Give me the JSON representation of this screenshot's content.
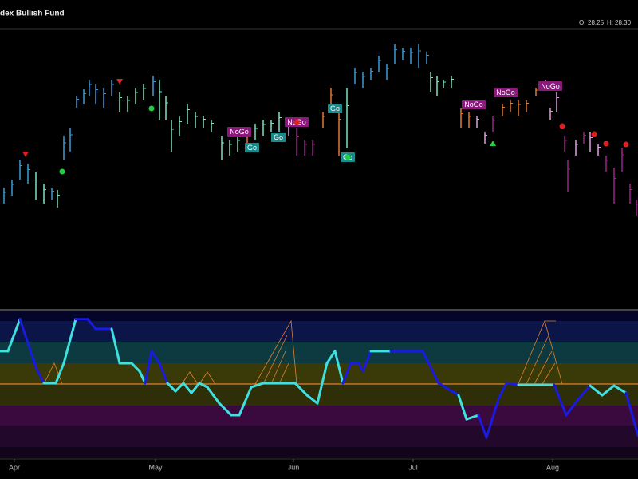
{
  "header": {
    "title": "dex Bullish Fund",
    "quote": {
      "open_label": "O:",
      "open": "28.25",
      "high_label": "H:",
      "high": "28.30"
    }
  },
  "chart_data": [
    {
      "type": "ohlc",
      "x": [
        0.5,
        1.5,
        2.5,
        3.5,
        4.5,
        5.5,
        6.5,
        7.2,
        8,
        8.8,
        9.6,
        10.5,
        11.2,
        12,
        13,
        14,
        15,
        16,
        17,
        18,
        19.2,
        20,
        20.8,
        21.5,
        22.5,
        23.5,
        24.5,
        25.5,
        26.5,
        27.8,
        28.8,
        29.8,
        31,
        32,
        33,
        34,
        35,
        36.2,
        37.2,
        38.2,
        39.2,
        40.5,
        41.5,
        42.5,
        43.5,
        44.5,
        45.5,
        46.5,
        47.5,
        48.5,
        49.5,
        50.5,
        51.5,
        52.5,
        53.5,
        54,
        54.8,
        55.6,
        56.6,
        57.8,
        58.8,
        59.8,
        60.8,
        61.8,
        63,
        64,
        65,
        66,
        67.2,
        68.4,
        69,
        69.8,
        70.8,
        71.2,
        72.2,
        73.2,
        74,
        75,
        76,
        77,
        78,
        79,
        79.8
      ],
      "high": [
        25.5,
        26.5,
        29,
        28.5,
        27.5,
        26,
        25.5,
        25.2,
        32,
        33,
        37,
        37.8,
        39,
        38.5,
        38,
        39,
        37.5,
        37,
        38,
        38.5,
        39.5,
        39,
        37,
        34,
        34.5,
        36,
        35,
        34.5,
        34,
        32,
        31.5,
        32,
        33,
        33.5,
        34,
        34,
        35,
        34,
        33,
        31.5,
        31.5,
        35,
        38,
        36,
        38,
        40.5,
        40,
        40.5,
        42,
        41,
        43.5,
        43,
        43,
        43.5,
        42.5,
        40,
        39.5,
        39,
        39.5,
        35.5,
        35,
        34.5,
        32.5,
        34.5,
        36,
        36.5,
        36.5,
        36.5,
        38,
        39,
        35.5,
        37.5,
        32,
        29,
        31.5,
        32.5,
        32.5,
        31,
        29.5,
        28,
        30.5,
        26,
        24
      ],
      "low": [
        23.5,
        24.5,
        26.5,
        26,
        24,
        23.5,
        24,
        23,
        29,
        30,
        35.5,
        36,
        37,
        36,
        35.5,
        37,
        35,
        35,
        36,
        36.5,
        37,
        34,
        34,
        30,
        32,
        33.5,
        33,
        33,
        32.5,
        29,
        29.5,
        30,
        31,
        31.5,
        32,
        32.5,
        32.5,
        32,
        29.5,
        29.5,
        29.5,
        33,
        35,
        29.5,
        30.5,
        38.5,
        38,
        39,
        40,
        39,
        41,
        41.5,
        41,
        40.5,
        41,
        37.5,
        37,
        38,
        38,
        33,
        33,
        33,
        31,
        32.5,
        34.5,
        35,
        34.5,
        35,
        37,
        38,
        34,
        35,
        30,
        25,
        29.5,
        31,
        30,
        29.5,
        27.5,
        23.5,
        27.5,
        23.5,
        22
      ],
      "colors": [
        "#3a9ad9",
        "#3a9ad9",
        "#3a9ad9",
        "#3a9ad9",
        "#7de3c0",
        "#7de3c0",
        "#3a9ad9",
        "#7de3c0",
        "#3a9ad9",
        "#3a9ad9",
        "#3a9ad9",
        "#3a9ad9",
        "#3a9ad9",
        "#3a9ad9",
        "#3a9ad9",
        "#3a9ad9",
        "#7de3c0",
        "#7de3c0",
        "#7de3c0",
        "#7de3c0",
        "#3a9ad9",
        "#7de3c0",
        "#7de3c0",
        "#7de3c0",
        "#7de3c0",
        "#7de3c0",
        "#7de3c0",
        "#7de3c0",
        "#7de3c0",
        "#7de3c0",
        "#7de3c0",
        "#7de3c0",
        "#e07a30",
        "#7de3c0",
        "#7de3c0",
        "#7de3c0",
        "#7de3c0",
        "#e0a0e0",
        "#a0208a",
        "#a0208a",
        "#a0208a",
        "#e07a30",
        "#e07a30",
        "#e07a30",
        "#7de3c0",
        "#3a9ad9",
        "#3a9ad9",
        "#3a9ad9",
        "#3a9ad9",
        "#3a9ad9",
        "#3a9ad9",
        "#3a9ad9",
        "#3a9ad9",
        "#3a9ad9",
        "#3a9ad9",
        "#7de3c0",
        "#7de3c0",
        "#7de3c0",
        "#7de3c0",
        "#e07a30",
        "#e07a30",
        "#e0a0e0",
        "#e0a0e0",
        "#a0208a",
        "#e07a30",
        "#e07a30",
        "#e07a30",
        "#e07a30",
        "#e07a30",
        "#e0a0e0",
        "#e0a0e0",
        "#e0a0e0",
        "#a0208a",
        "#a0208a",
        "#e0a0e0",
        "#a0208a",
        "#e0a0e0",
        "#e0a0e0",
        "#a0208a",
        "#a0208a",
        "#a0208a",
        "#a0208a",
        "#a0208a"
      ],
      "signals": [
        {
          "x": 3.2,
          "price": 29.7,
          "shape": "triangle-down",
          "color": "#e02020"
        },
        {
          "x": 15,
          "price": 38.8,
          "shape": "triangle-down",
          "color": "#e02020"
        },
        {
          "x": 7.8,
          "price": 27.5,
          "shape": "dot",
          "color": "#20d040"
        },
        {
          "x": 19,
          "price": 35.4,
          "shape": "dot",
          "color": "#20d040"
        },
        {
          "x": 37.2,
          "price": 33.7,
          "shape": "dot",
          "color": "#e02020"
        },
        {
          "x": 43.6,
          "price": 29.3,
          "shape": "dot",
          "color": "#20d040"
        },
        {
          "x": 61.8,
          "price": 31,
          "shape": "triangle-up",
          "color": "#20d040"
        },
        {
          "x": 70.5,
          "price": 33.2,
          "shape": "dot",
          "color": "#e02020"
        },
        {
          "x": 74.5,
          "price": 32.2,
          "shape": "dot",
          "color": "#e02020"
        },
        {
          "x": 76,
          "price": 31,
          "shape": "dot",
          "color": "#e02020"
        },
        {
          "x": 78.5,
          "price": 30.9,
          "shape": "dot",
          "color": "#e02020"
        }
      ],
      "annotations": [
        {
          "text": "NoGo",
          "x": 30,
          "price": 32.5,
          "color": "#8a1a7a"
        },
        {
          "text": "Go",
          "x": 31.6,
          "price": 30.5,
          "color": "#1a8a8a"
        },
        {
          "text": "Go",
          "x": 34.9,
          "price": 31.8,
          "color": "#1a8a8a"
        },
        {
          "text": "NoGo",
          "x": 37.2,
          "price": 33.7,
          "color": "#8a1a7a"
        },
        {
          "text": "Go",
          "x": 42,
          "price": 35.4,
          "color": "#1a8a8a"
        },
        {
          "text": "Go",
          "x": 43.6,
          "price": 29.3,
          "color": "#1a8a8a"
        },
        {
          "text": "NoGo",
          "x": 59.4,
          "price": 35.9,
          "color": "#8a1a7a"
        },
        {
          "text": "NoGo",
          "x": 63.4,
          "price": 37.4,
          "color": "#8a1a7a"
        },
        {
          "text": "NoGo",
          "x": 69,
          "price": 38.2,
          "color": "#8a1a7a"
        }
      ],
      "xlim": [
        0,
        80
      ],
      "ylim": [
        10,
        46
      ]
    },
    {
      "type": "oscillator",
      "x": [
        0,
        1,
        2.5,
        3.5,
        4.5,
        5.5,
        7,
        8,
        9.5,
        11,
        12,
        14,
        15,
        16.5,
        17.5,
        18.2,
        19,
        20,
        21,
        22,
        23,
        24,
        25,
        26,
        27.5,
        29,
        30,
        31.5,
        33,
        37,
        38.5,
        39.8,
        41,
        42,
        43,
        44,
        45,
        45.5,
        46.5,
        49,
        53,
        55,
        57.5,
        58.5,
        60,
        61,
        62.5,
        63.5,
        65,
        69.5,
        71,
        72.5,
        74,
        75.5,
        77,
        78.5,
        80
      ],
      "values": [
        1.55,
        1.55,
        3.06,
        1.92,
        0.79,
        0.04,
        0.04,
        0.98,
        3.06,
        3.06,
        2.6,
        2.6,
        0.98,
        0.98,
        0.6,
        0.04,
        1.55,
        0.98,
        0.04,
        -0.34,
        0.04,
        -0.42,
        0.04,
        -0.15,
        -0.91,
        -1.47,
        -1.47,
        -0.15,
        0.04,
        0.04,
        -0.53,
        -0.91,
        0.98,
        1.55,
        0.04,
        0.98,
        0.98,
        0.6,
        1.55,
        1.55,
        1.55,
        0.04,
        -0.53,
        -1.66,
        -1.47,
        -2.53,
        -0.72,
        0.04,
        -0.04,
        -0.04,
        -1.47,
        -0.72,
        -0.08,
        -0.53,
        -0.08,
        -0.42,
        -2.42
      ],
      "colors": [
        "#40e0e0",
        "#40e0e0",
        "#1a1ae0",
        "#1a1ae0",
        "#1a1ae0",
        "#40e0e0",
        "#40e0e0",
        "#40e0e0",
        "#1a1ae0",
        "#1a1ae0",
        "#1a1ae0",
        "#40e0e0",
        "#40e0e0",
        "#40e0e0",
        "#40e0e0",
        "#1a1ae0",
        "#1a1ae0",
        "#1a1ae0",
        "#40e0e0",
        "#40e0e0",
        "#40e0e0",
        "#40e0e0",
        "#40e0e0",
        "#40e0e0",
        "#40e0e0",
        "#40e0e0",
        "#40e0e0",
        "#40e0e0",
        "#40e0e0",
        "#40e0e0",
        "#40e0e0",
        "#40e0e0",
        "#40e0e0",
        "#40e0e0",
        "#1a1ae0",
        "#1a1ae0",
        "#1a1ae0",
        "#1a1ae0",
        "#40e0e0",
        "#1a1ae0",
        "#1a1ae0",
        "#1a1ae0",
        "#40e0e0",
        "#40e0e0",
        "#1a1ae0",
        "#1a1ae0",
        "#1a1ae0",
        "#1a1ae0",
        "#40e0e0",
        "#1a1ae0",
        "#1a1ae0",
        "#1a1ae0",
        "#40e0e0",
        "#40e0e0",
        "#40e0e0",
        "#1a1ae0",
        "#1a1ae0"
      ],
      "xlim": [
        0,
        80
      ],
      "ylim": [
        -3.5,
        3.5
      ],
      "xticks": [
        {
          "value": 1.8,
          "label": "Apr"
        },
        {
          "value": 19.5,
          "label": "May"
        },
        {
          "value": 36.8,
          "label": "Jun"
        },
        {
          "value": 51.8,
          "label": "Jul"
        },
        {
          "value": 69.3,
          "label": "Aug"
        }
      ]
    }
  ]
}
